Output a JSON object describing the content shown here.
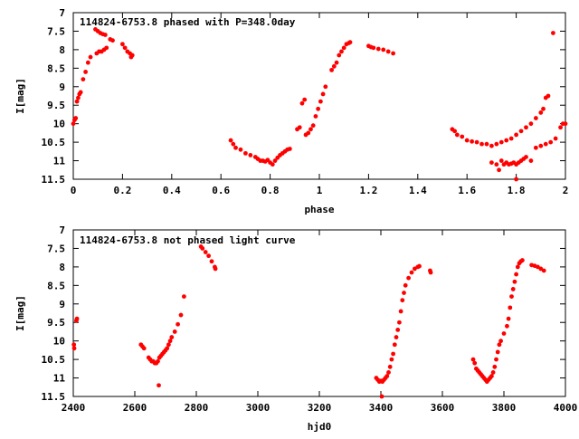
{
  "chart_data": [
    {
      "type": "scatter",
      "title": "114824-6753.8 phased with P=348.0day",
      "xlabel": "phase",
      "ylabel": "I[mag]",
      "xlim": [
        0,
        2
      ],
      "ylim": [
        7,
        11.5
      ],
      "y_inverted": true,
      "x_ticks": [
        "0",
        "0.2",
        "0.4",
        "0.6",
        "0.8",
        "1",
        "1.2",
        "1.4",
        "1.6",
        "1.8",
        "2"
      ],
      "x_tick_values": [
        0,
        0.2,
        0.4,
        0.6,
        0.8,
        1,
        1.2,
        1.4,
        1.6,
        1.8,
        2
      ],
      "y_ticks": [
        "7",
        "7.5",
        "8",
        "8.5",
        "9",
        "9.5",
        "10",
        "10.5",
        "11",
        "11.5"
      ],
      "y_tick_values": [
        7,
        7.5,
        8,
        8.5,
        9,
        9.5,
        10,
        10.5,
        11,
        11.5
      ],
      "grid": false,
      "marker_color": "#ff0000",
      "points": [
        [
          0.0,
          10.0
        ],
        [
          0.005,
          9.9
        ],
        [
          0.01,
          9.85
        ],
        [
          0.015,
          9.4
        ],
        [
          0.02,
          9.3
        ],
        [
          0.025,
          9.2
        ],
        [
          0.03,
          9.15
        ],
        [
          0.04,
          8.8
        ],
        [
          0.05,
          8.6
        ],
        [
          0.06,
          8.35
        ],
        [
          0.07,
          8.2
        ],
        [
          0.09,
          7.45
        ],
        [
          0.1,
          7.5
        ],
        [
          0.11,
          7.55
        ],
        [
          0.12,
          7.58
        ],
        [
          0.13,
          7.6
        ],
        [
          0.095,
          8.1
        ],
        [
          0.105,
          8.05
        ],
        [
          0.115,
          8.05
        ],
        [
          0.125,
          8.0
        ],
        [
          0.135,
          7.95
        ],
        [
          0.15,
          7.72
        ],
        [
          0.16,
          7.75
        ],
        [
          0.2,
          7.85
        ],
        [
          0.21,
          7.95
        ],
        [
          0.22,
          8.05
        ],
        [
          0.23,
          8.1
        ],
        [
          0.24,
          8.15
        ],
        [
          0.235,
          8.2
        ],
        [
          0.64,
          10.45
        ],
        [
          0.65,
          10.55
        ],
        [
          0.66,
          10.65
        ],
        [
          0.68,
          10.7
        ],
        [
          0.7,
          10.8
        ],
        [
          0.72,
          10.85
        ],
        [
          0.74,
          10.9
        ],
        [
          0.75,
          10.95
        ],
        [
          0.76,
          11.0
        ],
        [
          0.77,
          11.0
        ],
        [
          0.78,
          11.02
        ],
        [
          0.79,
          10.98
        ],
        [
          0.8,
          11.05
        ],
        [
          0.81,
          11.1
        ],
        [
          0.82,
          11.0
        ],
        [
          0.83,
          10.92
        ],
        [
          0.84,
          10.85
        ],
        [
          0.85,
          10.8
        ],
        [
          0.86,
          10.75
        ],
        [
          0.87,
          10.7
        ],
        [
          0.88,
          10.68
        ],
        [
          0.91,
          10.15
        ],
        [
          0.92,
          10.1
        ],
        [
          0.93,
          9.45
        ],
        [
          0.94,
          9.35
        ],
        [
          0.945,
          10.3
        ],
        [
          0.955,
          10.25
        ],
        [
          0.965,
          10.15
        ],
        [
          0.975,
          10.05
        ],
        [
          0.985,
          9.8
        ],
        [
          0.995,
          9.6
        ],
        [
          1.005,
          9.4
        ],
        [
          1.015,
          9.2
        ],
        [
          1.025,
          9.0
        ],
        [
          1.05,
          8.55
        ],
        [
          1.06,
          8.45
        ],
        [
          1.07,
          8.35
        ],
        [
          1.08,
          8.15
        ],
        [
          1.09,
          8.05
        ],
        [
          1.1,
          7.95
        ],
        [
          1.11,
          7.85
        ],
        [
          1.12,
          7.82
        ],
        [
          1.125,
          7.8
        ],
        [
          1.2,
          7.9
        ],
        [
          1.21,
          7.93
        ],
        [
          1.22,
          7.95
        ],
        [
          1.24,
          7.98
        ],
        [
          1.26,
          8.0
        ],
        [
          1.28,
          8.05
        ],
        [
          1.3,
          8.1
        ],
        [
          1.54,
          10.15
        ],
        [
          1.55,
          10.2
        ],
        [
          1.56,
          10.3
        ],
        [
          1.58,
          10.35
        ],
        [
          1.6,
          10.45
        ],
        [
          1.62,
          10.48
        ],
        [
          1.64,
          10.5
        ],
        [
          1.66,
          10.55
        ],
        [
          1.68,
          10.55
        ],
        [
          1.7,
          10.6
        ],
        [
          1.72,
          10.55
        ],
        [
          1.74,
          10.5
        ],
        [
          1.76,
          10.45
        ],
        [
          1.78,
          10.4
        ],
        [
          1.8,
          10.3
        ],
        [
          1.82,
          10.2
        ],
        [
          1.84,
          10.1
        ],
        [
          1.86,
          10.0
        ],
        [
          1.88,
          9.85
        ],
        [
          1.9,
          9.7
        ],
        [
          1.91,
          9.6
        ],
        [
          1.92,
          9.3
        ],
        [
          1.93,
          9.25
        ],
        [
          1.95,
          7.55
        ],
        [
          1.7,
          11.05
        ],
        [
          1.72,
          11.1
        ],
        [
          1.73,
          11.25
        ],
        [
          1.74,
          11.0
        ],
        [
          1.75,
          11.1
        ],
        [
          1.76,
          11.05
        ],
        [
          1.77,
          11.1
        ],
        [
          1.78,
          11.08
        ],
        [
          1.79,
          11.05
        ],
        [
          1.8,
          11.1
        ],
        [
          1.81,
          11.05
        ],
        [
          1.82,
          11.0
        ],
        [
          1.83,
          10.95
        ],
        [
          1.84,
          10.9
        ],
        [
          1.86,
          11.0
        ],
        [
          1.8,
          11.5
        ],
        [
          1.88,
          10.65
        ],
        [
          1.9,
          10.6
        ],
        [
          1.92,
          10.55
        ],
        [
          1.94,
          10.5
        ],
        [
          1.96,
          10.4
        ],
        [
          1.98,
          10.1
        ],
        [
          1.99,
          10.0
        ],
        [
          2.0,
          10.0
        ]
      ]
    },
    {
      "type": "scatter",
      "title": "114824-6753.8 not phased light curve",
      "xlabel": "hjd0",
      "ylabel": "I[mag]",
      "xlim": [
        2400,
        4000
      ],
      "ylim": [
        7,
        11.5
      ],
      "y_inverted": true,
      "x_ticks": [
        "2400",
        "2600",
        "2800",
        "3000",
        "3200",
        "3400",
        "3600",
        "3800",
        "4000"
      ],
      "x_tick_values": [
        2400,
        2600,
        2800,
        3000,
        3200,
        3400,
        3600,
        3800,
        4000
      ],
      "y_ticks": [
        "7",
        "7.5",
        "8",
        "8.5",
        "9",
        "9.5",
        "10",
        "10.5",
        "11",
        "11.5"
      ],
      "y_tick_values": [
        7,
        7.5,
        8,
        8.5,
        9,
        9.5,
        10,
        10.5,
        11,
        11.5
      ],
      "grid": false,
      "marker_color": "#ff0000",
      "points": [
        [
          2402,
          10.1
        ],
        [
          2403,
          10.2
        ],
        [
          2410,
          9.45
        ],
        [
          2412,
          9.4
        ],
        [
          2620,
          10.1
        ],
        [
          2625,
          10.15
        ],
        [
          2630,
          10.2
        ],
        [
          2645,
          10.45
        ],
        [
          2650,
          10.5
        ],
        [
          2655,
          10.55
        ],
        [
          2660,
          10.55
        ],
        [
          2665,
          10.6
        ],
        [
          2670,
          10.6
        ],
        [
          2675,
          10.55
        ],
        [
          2680,
          10.45
        ],
        [
          2685,
          10.4
        ],
        [
          2690,
          10.35
        ],
        [
          2695,
          10.3
        ],
        [
          2700,
          10.25
        ],
        [
          2705,
          10.2
        ],
        [
          2710,
          10.1
        ],
        [
          2715,
          10.0
        ],
        [
          2720,
          9.9
        ],
        [
          2730,
          9.75
        ],
        [
          2740,
          9.55
        ],
        [
          2750,
          9.3
        ],
        [
          2760,
          8.8
        ],
        [
          2678,
          11.2
        ],
        [
          2815,
          7.45
        ],
        [
          2820,
          7.5
        ],
        [
          2830,
          7.6
        ],
        [
          2840,
          7.7
        ],
        [
          2850,
          7.85
        ],
        [
          2860,
          8.0
        ],
        [
          2862,
          8.05
        ],
        [
          3385,
          11.0
        ],
        [
          3390,
          11.05
        ],
        [
          3395,
          11.1
        ],
        [
          3400,
          11.08
        ],
        [
          3405,
          11.1
        ],
        [
          3410,
          11.05
        ],
        [
          3415,
          11.0
        ],
        [
          3420,
          10.95
        ],
        [
          3425,
          10.85
        ],
        [
          3430,
          10.7
        ],
        [
          3435,
          10.5
        ],
        [
          3440,
          10.35
        ],
        [
          3445,
          10.1
        ],
        [
          3450,
          9.9
        ],
        [
          3455,
          9.7
        ],
        [
          3460,
          9.5
        ],
        [
          3465,
          9.2
        ],
        [
          3470,
          8.9
        ],
        [
          3475,
          8.7
        ],
        [
          3480,
          8.5
        ],
        [
          3490,
          8.3
        ],
        [
          3500,
          8.15
        ],
        [
          3510,
          8.05
        ],
        [
          3520,
          8.0
        ],
        [
          3525,
          7.98
        ],
        [
          3560,
          8.1
        ],
        [
          3562,
          8.15
        ],
        [
          3403,
          11.5
        ],
        [
          3700,
          10.5
        ],
        [
          3705,
          10.6
        ],
        [
          3710,
          10.75
        ],
        [
          3715,
          10.8
        ],
        [
          3720,
          10.85
        ],
        [
          3725,
          10.9
        ],
        [
          3730,
          10.95
        ],
        [
          3735,
          11.0
        ],
        [
          3740,
          11.05
        ],
        [
          3745,
          11.1
        ],
        [
          3750,
          11.05
        ],
        [
          3755,
          11.0
        ],
        [
          3760,
          10.95
        ],
        [
          3765,
          10.85
        ],
        [
          3770,
          10.7
        ],
        [
          3775,
          10.5
        ],
        [
          3780,
          10.3
        ],
        [
          3785,
          10.1
        ],
        [
          3790,
          10.0
        ],
        [
          3800,
          9.8
        ],
        [
          3810,
          9.6
        ],
        [
          3815,
          9.4
        ],
        [
          3820,
          9.1
        ],
        [
          3825,
          8.8
        ],
        [
          3830,
          8.6
        ],
        [
          3835,
          8.4
        ],
        [
          3840,
          8.2
        ],
        [
          3845,
          8.0
        ],
        [
          3850,
          7.9
        ],
        [
          3855,
          7.85
        ],
        [
          3860,
          7.82
        ],
        [
          3890,
          7.95
        ],
        [
          3900,
          7.97
        ],
        [
          3910,
          8.0
        ],
        [
          3920,
          8.05
        ],
        [
          3930,
          8.1
        ]
      ]
    }
  ]
}
